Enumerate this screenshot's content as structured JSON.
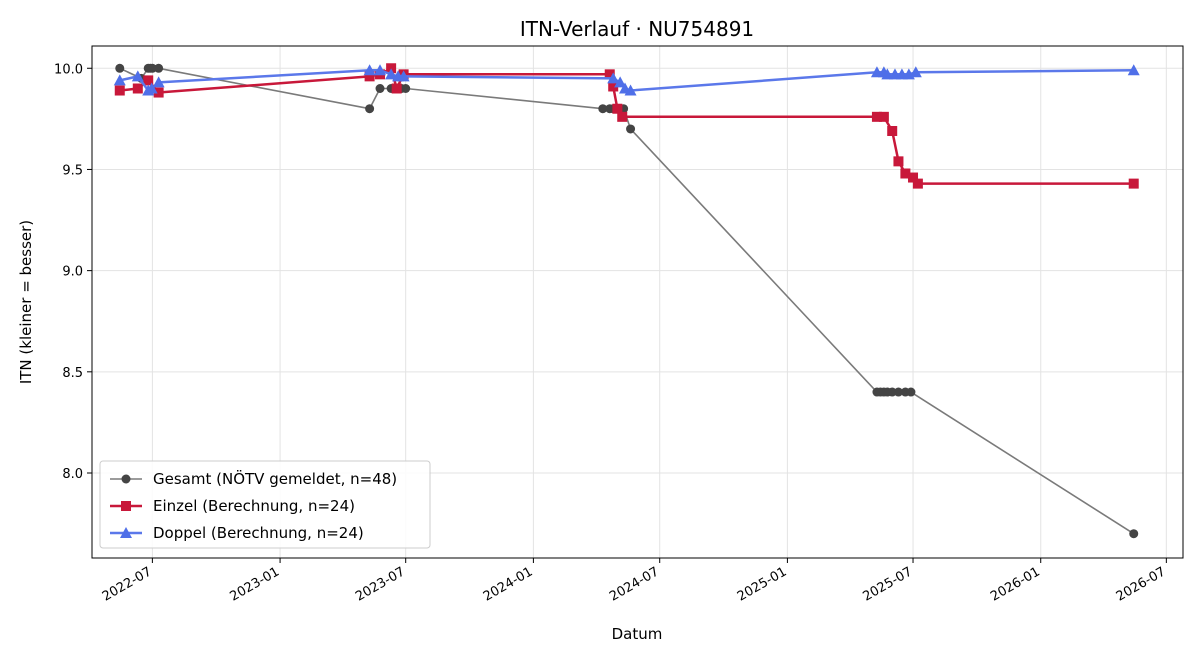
{
  "chart_data": {
    "type": "line",
    "title": "ITN-Verlauf · NU754891",
    "xlabel": "Datum",
    "ylabel": "ITN  (kleiner = besser)",
    "x_type": "date",
    "xlim": [
      "2022-04-05",
      "2026-07-25"
    ],
    "ylim": [
      7.58,
      10.11
    ],
    "x_ticks": [
      "2022-07",
      "2023-01",
      "2023-07",
      "2024-01",
      "2024-07",
      "2025-01",
      "2025-07",
      "2026-01",
      "2026-07"
    ],
    "y_ticks": [
      8.0,
      8.5,
      9.0,
      9.5,
      10.0
    ],
    "grid": true,
    "legend_position": "lower-left",
    "series": [
      {
        "name": "Gesamt (NÖTV gemeldet, n=48)",
        "color": "#444444",
        "line_color": "#7a7a7a",
        "marker": "circle",
        "points": [
          [
            "2022-05-15",
            10.0
          ],
          [
            "2022-06-15",
            9.95
          ],
          [
            "2022-06-25",
            10.0
          ],
          [
            "2022-06-28",
            10.0
          ],
          [
            "2022-07-01",
            10.0
          ],
          [
            "2022-07-10",
            10.0
          ],
          [
            "2023-05-10",
            9.8
          ],
          [
            "2023-05-25",
            9.9
          ],
          [
            "2023-06-10",
            9.9
          ],
          [
            "2023-06-15",
            9.9
          ],
          [
            "2023-06-20",
            9.9
          ],
          [
            "2023-06-25",
            9.9
          ],
          [
            "2023-07-01",
            9.9
          ],
          [
            "2024-04-10",
            9.8
          ],
          [
            "2024-04-20",
            9.8
          ],
          [
            "2024-04-25",
            9.8
          ],
          [
            "2024-05-01",
            9.8
          ],
          [
            "2024-05-05",
            9.8
          ],
          [
            "2024-05-10",
            9.8
          ],
          [
            "2024-05-20",
            9.7
          ],
          [
            "2025-05-10",
            8.4
          ],
          [
            "2025-05-15",
            8.4
          ],
          [
            "2025-05-20",
            8.4
          ],
          [
            "2025-05-25",
            8.4
          ],
          [
            "2025-06-01",
            8.4
          ],
          [
            "2025-06-10",
            8.4
          ],
          [
            "2025-06-20",
            8.4
          ],
          [
            "2025-06-28",
            8.4
          ],
          [
            "2026-05-15",
            7.7
          ]
        ]
      },
      {
        "name": "Einzel (Berechnung, n=24)",
        "color": "#c8183a",
        "line_color": "#c8183a",
        "marker": "square",
        "points": [
          [
            "2022-05-15",
            9.89
          ],
          [
            "2022-06-10",
            9.9
          ],
          [
            "2022-06-25",
            9.94
          ],
          [
            "2022-07-10",
            9.88
          ],
          [
            "2023-05-10",
            9.96
          ],
          [
            "2023-05-25",
            9.97
          ],
          [
            "2023-06-10",
            10.0
          ],
          [
            "2023-06-18",
            9.9
          ],
          [
            "2023-06-28",
            9.97
          ],
          [
            "2024-04-20",
            9.97
          ],
          [
            "2024-04-25",
            9.91
          ],
          [
            "2024-05-01",
            9.8
          ],
          [
            "2024-05-08",
            9.76
          ],
          [
            "2025-05-10",
            9.76
          ],
          [
            "2025-05-20",
            9.76
          ],
          [
            "2025-06-01",
            9.69
          ],
          [
            "2025-06-10",
            9.54
          ],
          [
            "2025-06-20",
            9.48
          ],
          [
            "2025-07-01",
            9.46
          ],
          [
            "2025-07-08",
            9.43
          ],
          [
            "2026-05-15",
            9.43
          ]
        ]
      },
      {
        "name": "Doppel (Berechnung, n=24)",
        "color": "#4f6fe8",
        "line_color": "#5b78ea",
        "marker": "triangle",
        "points": [
          [
            "2022-05-15",
            9.94
          ],
          [
            "2022-06-10",
            9.96
          ],
          [
            "2022-06-25",
            9.89
          ],
          [
            "2022-06-30",
            9.9
          ],
          [
            "2022-07-10",
            9.93
          ],
          [
            "2023-05-10",
            9.99
          ],
          [
            "2023-05-25",
            9.99
          ],
          [
            "2023-06-10",
            9.97
          ],
          [
            "2023-06-20",
            9.96
          ],
          [
            "2023-06-28",
            9.96
          ],
          [
            "2024-04-25",
            9.95
          ],
          [
            "2024-05-05",
            9.93
          ],
          [
            "2024-05-12",
            9.9
          ],
          [
            "2024-05-20",
            9.89
          ],
          [
            "2025-05-10",
            9.98
          ],
          [
            "2025-05-20",
            9.98
          ],
          [
            "2025-05-25",
            9.97
          ],
          [
            "2025-06-05",
            9.97
          ],
          [
            "2025-06-15",
            9.97
          ],
          [
            "2025-06-25",
            9.97
          ],
          [
            "2025-07-05",
            9.98
          ],
          [
            "2026-05-15",
            9.99
          ]
        ]
      }
    ]
  }
}
